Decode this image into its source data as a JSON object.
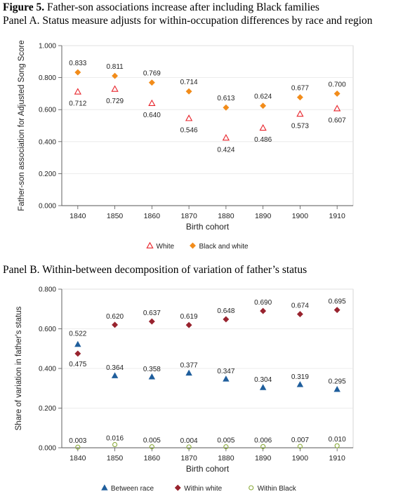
{
  "figure": {
    "label": "Figure 5.",
    "title": "Father-son associations increase after including Black families"
  },
  "colors": {
    "white_marker": "#e8242b",
    "black_white_marker": "#f28c1a",
    "between_race": "#1f5e9c",
    "within_white": "#98232e",
    "within_black": "#8aab3a",
    "axis": "#555555",
    "grid": "#e6e6e6"
  },
  "chart_data": [
    {
      "type": "scatter",
      "title": "Panel A. Status measure adjusts for within-occupation differences by race and region",
      "xlabel": "Birth cohort",
      "ylabel": "Father-son association for Adjusted Song Score",
      "categories": [
        "1840",
        "1850",
        "1860",
        "1870",
        "1880",
        "1890",
        "1900",
        "1910"
      ],
      "ylim": [
        0,
        1
      ],
      "yticks": [
        "0.000",
        "0.200",
        "0.400",
        "0.600",
        "0.800",
        "1.000"
      ],
      "grid": true,
      "legend_position": "bottom",
      "series": [
        {
          "name": "White",
          "marker": "triangle-hollow",
          "values": [
            0.712,
            0.729,
            0.64,
            0.546,
            0.424,
            0.486,
            0.573,
            0.607
          ],
          "labels": [
            "0.712",
            "0.729",
            "0.640",
            "0.546",
            "0.424",
            "0.486",
            "0.573",
            "0.607"
          ]
        },
        {
          "name": "Black and white",
          "marker": "diamond",
          "values": [
            0.833,
            0.811,
            0.769,
            0.714,
            0.613,
            0.624,
            0.677,
            0.7
          ],
          "labels": [
            "0.833",
            "0.811",
            "0.769",
            "0.714",
            "0.613",
            "0.624",
            "0.677",
            "0.700"
          ]
        }
      ]
    },
    {
      "type": "scatter",
      "title": "Panel B. Within-between decomposition of variation of father’s status",
      "xlabel": "Birth cohort",
      "ylabel": "Share of variation in father's status",
      "categories": [
        "1840",
        "1850",
        "1860",
        "1870",
        "1880",
        "1890",
        "1900",
        "1910"
      ],
      "ylim": [
        0,
        0.8
      ],
      "yticks": [
        "0.000",
        "0.200",
        "0.400",
        "0.600",
        "0.800"
      ],
      "grid": true,
      "legend_position": "bottom",
      "series": [
        {
          "name": "Between race",
          "marker": "triangle",
          "values": [
            0.522,
            0.364,
            0.358,
            0.377,
            0.347,
            0.304,
            0.319,
            0.295
          ],
          "labels": [
            "0.522",
            "0.364",
            "0.358",
            "0.377",
            "0.347",
            "0.304",
            "0.319",
            "0.295"
          ]
        },
        {
          "name": "Within white",
          "marker": "diamond",
          "values": [
            0.475,
            0.62,
            0.637,
            0.619,
            0.648,
            0.69,
            0.674,
            0.695
          ],
          "labels": [
            "0.475",
            "0.620",
            "0.637",
            "0.619",
            "0.648",
            "0.690",
            "0.674",
            "0.695"
          ]
        },
        {
          "name": "Within Black",
          "marker": "circle-hollow",
          "values": [
            0.003,
            0.016,
            0.005,
            0.004,
            0.005,
            0.006,
            0.007,
            0.01
          ],
          "labels": [
            "0.003",
            "0.016",
            "0.005",
            "0.004",
            "0.005",
            "0.006",
            "0.007",
            "0.010"
          ]
        }
      ]
    }
  ]
}
